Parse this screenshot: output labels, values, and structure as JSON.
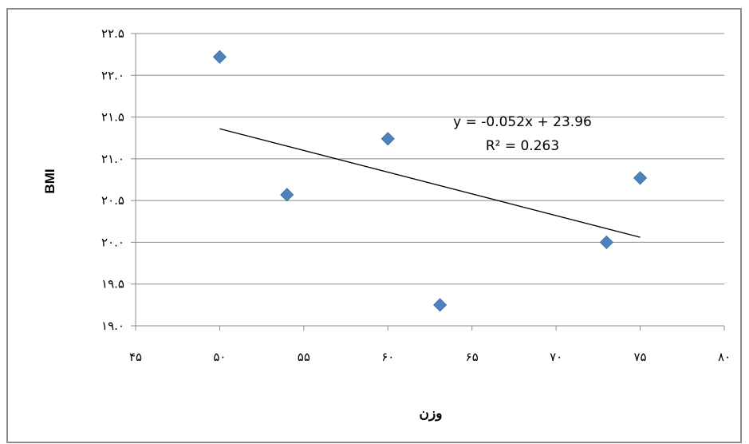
{
  "chart_data": {
    "type": "scatter",
    "title": "",
    "xlabel": "وزن",
    "ylabel": "BMI",
    "xlim": [
      45,
      80
    ],
    "ylim": [
      19.0,
      22.5
    ],
    "x_ticks": [
      {
        "value": 45,
        "label": "۴۵"
      },
      {
        "value": 50,
        "label": "۵۰"
      },
      {
        "value": 55,
        "label": "۵۵"
      },
      {
        "value": 60,
        "label": "۶۰"
      },
      {
        "value": 65,
        "label": "۶۵"
      },
      {
        "value": 70,
        "label": "۷۰"
      },
      {
        "value": 75,
        "label": "۷۵"
      },
      {
        "value": 80,
        "label": "۸۰"
      }
    ],
    "y_ticks": [
      {
        "value": 19.0,
        "label": "۱۹.۰"
      },
      {
        "value": 19.5,
        "label": "۱۹.۵"
      },
      {
        "value": 20.0,
        "label": "۲۰.۰"
      },
      {
        "value": 20.5,
        "label": "۲۰.۵"
      },
      {
        "value": 21.0,
        "label": "۲۱.۰"
      },
      {
        "value": 21.5,
        "label": "۲۱.۵"
      },
      {
        "value": 22.0,
        "label": "۲۲.۰"
      },
      {
        "value": 22.5,
        "label": "۲۲.۵"
      }
    ],
    "grid": {
      "horizontal": true,
      "vertical": false
    },
    "legend": "none",
    "points": [
      {
        "x": 50,
        "y": 22.22
      },
      {
        "x": 54,
        "y": 20.57
      },
      {
        "x": 60,
        "y": 21.24
      },
      {
        "x": 63.1,
        "y": 19.25
      },
      {
        "x": 73,
        "y": 20.0
      },
      {
        "x": 75,
        "y": 20.77
      }
    ],
    "trendline": {
      "x_start": 50,
      "x_end": 75,
      "slope": -0.052,
      "intercept": 23.96,
      "equation": "y = -0.052x + 23.96",
      "r2_label": "R² = 0.263"
    },
    "colors": {
      "marker": "#4f81bd",
      "trendline": "#000000",
      "grid": "#8c8c8c",
      "axis": "#8c8c8c"
    }
  }
}
